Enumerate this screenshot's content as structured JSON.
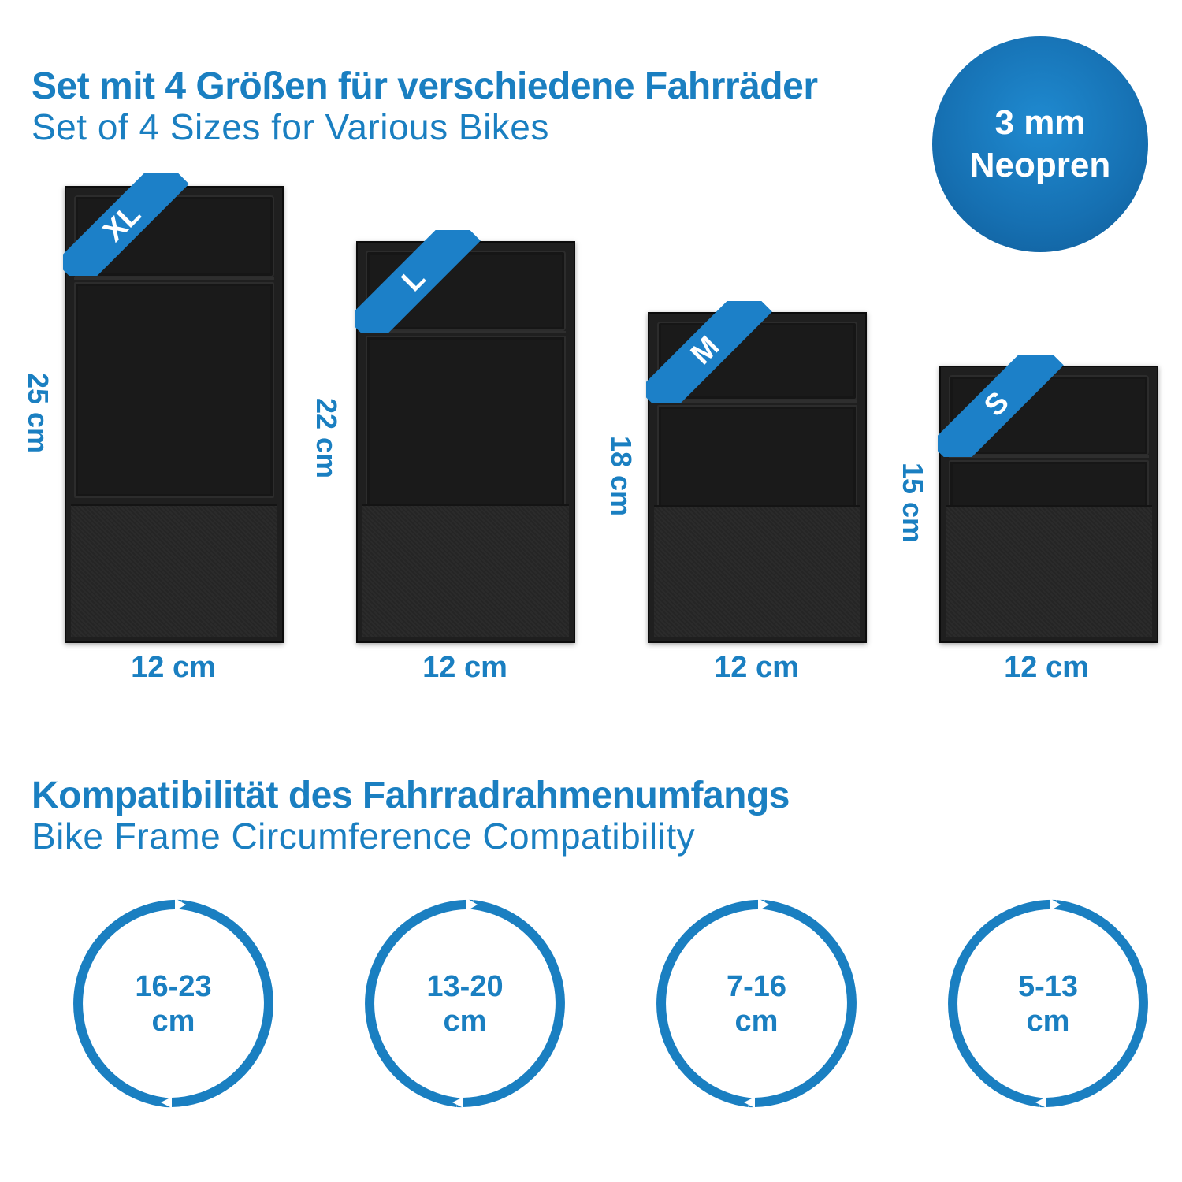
{
  "header": {
    "title_de": "Set mit 4 Größen für verschiedene Fahrräder",
    "title_en": "Set of 4 Sizes for Various Bikes"
  },
  "badge": {
    "line1": "3 mm",
    "line2": "Neopren"
  },
  "sizes": [
    {
      "tag": "XL",
      "height": "25 cm",
      "width": "12 cm"
    },
    {
      "tag": "L",
      "height": "22 cm",
      "width": "12 cm"
    },
    {
      "tag": "M",
      "height": "18 cm",
      "width": "12 cm"
    },
    {
      "tag": "S",
      "height": "15 cm",
      "width": "12 cm"
    }
  ],
  "compatibility": {
    "title_de": "Kompatibilität des Fahrradrahmenumfangs",
    "title_en": "Bike Frame Circumference Compatibility",
    "rings": [
      {
        "range": "16-23",
        "unit": "cm"
      },
      {
        "range": "13-20",
        "unit": "cm"
      },
      {
        "range": "7-16",
        "unit": "cm"
      },
      {
        "range": "5-13",
        "unit": "cm"
      }
    ]
  },
  "colors": {
    "accent": "#1a7fc1",
    "pad": "#1f1f1f"
  }
}
